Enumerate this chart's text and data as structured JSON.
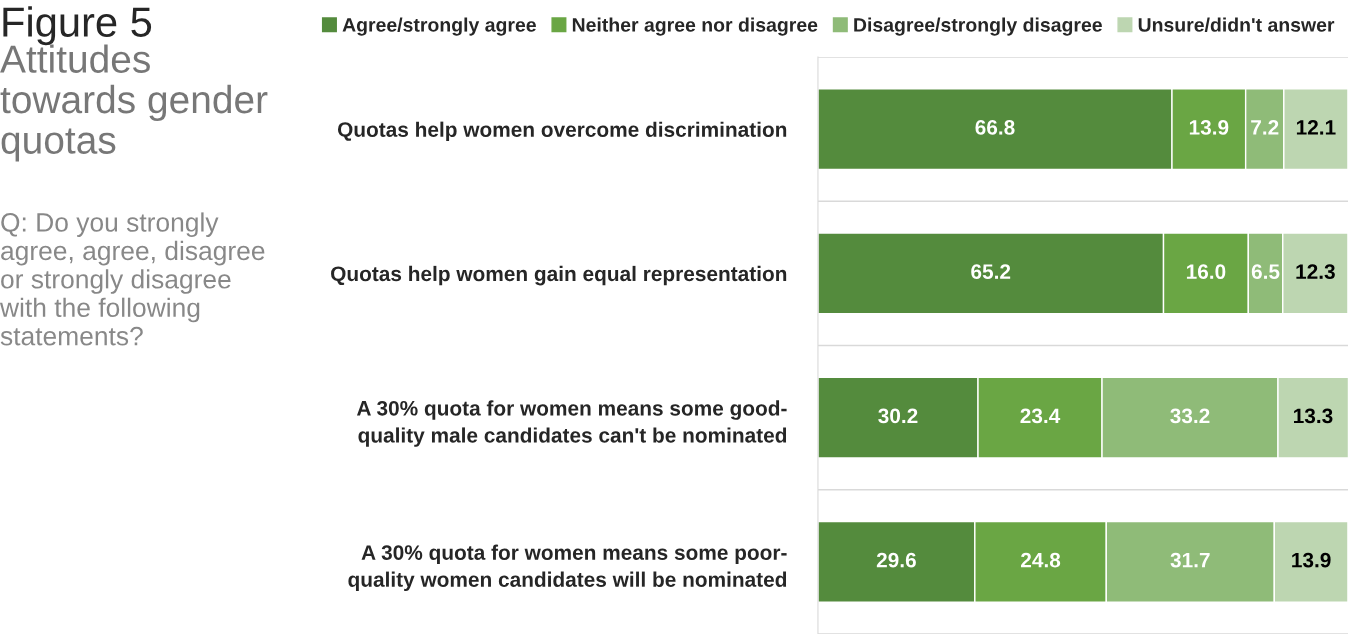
{
  "chart_data": {
    "type": "bar",
    "orientation": "horizontal",
    "stacked": true,
    "title": "Figure 5",
    "subtitle": "Attitudes\ntowards gender\nquotas",
    "annotations": [
      "Q: Do you strongly\nagree, agree, disagree\nor strongly disagree\nwith the following\nstatements?"
    ],
    "categories": [
      "Quotas help women overcome discrimination",
      "Quotas help women gain equal representation",
      "A 30% quota for women means some good-\nquality male candidates can't be nominated",
      "A 30% quota for women means some poor-\nquality women candidates will be nominated"
    ],
    "series": [
      {
        "name": "Agree/strongly agree",
        "color": "#548b3d",
        "values": [
          66.8,
          65.2,
          30.2,
          29.6
        ],
        "value_labels": [
          "66.8",
          "65.2",
          "30.2",
          "29.6"
        ]
      },
      {
        "name": "Neither agree nor disagree",
        "color": "#6aa644",
        "values": [
          13.9,
          16.0,
          23.4,
          24.8
        ],
        "value_labels": [
          "13.9",
          "16.0",
          "23.4",
          "24.8"
        ]
      },
      {
        "name": "Disagree/strongly disagree",
        "color": "#8fbb78",
        "values": [
          7.2,
          6.5,
          33.2,
          31.7
        ],
        "value_labels": [
          "7.2",
          "6.5",
          "33.2",
          "31.7"
        ]
      },
      {
        "name": "Unsure/didn't answer",
        "color": "#bdd6b1",
        "values": [
          12.1,
          12.3,
          13.3,
          13.9
        ],
        "value_labels": [
          "12.1",
          "12.3",
          "13.3",
          "13.9"
        ]
      }
    ],
    "xlim": [
      0,
      100
    ],
    "tick_labels": "y",
    "grid": "y",
    "legend": "top"
  }
}
